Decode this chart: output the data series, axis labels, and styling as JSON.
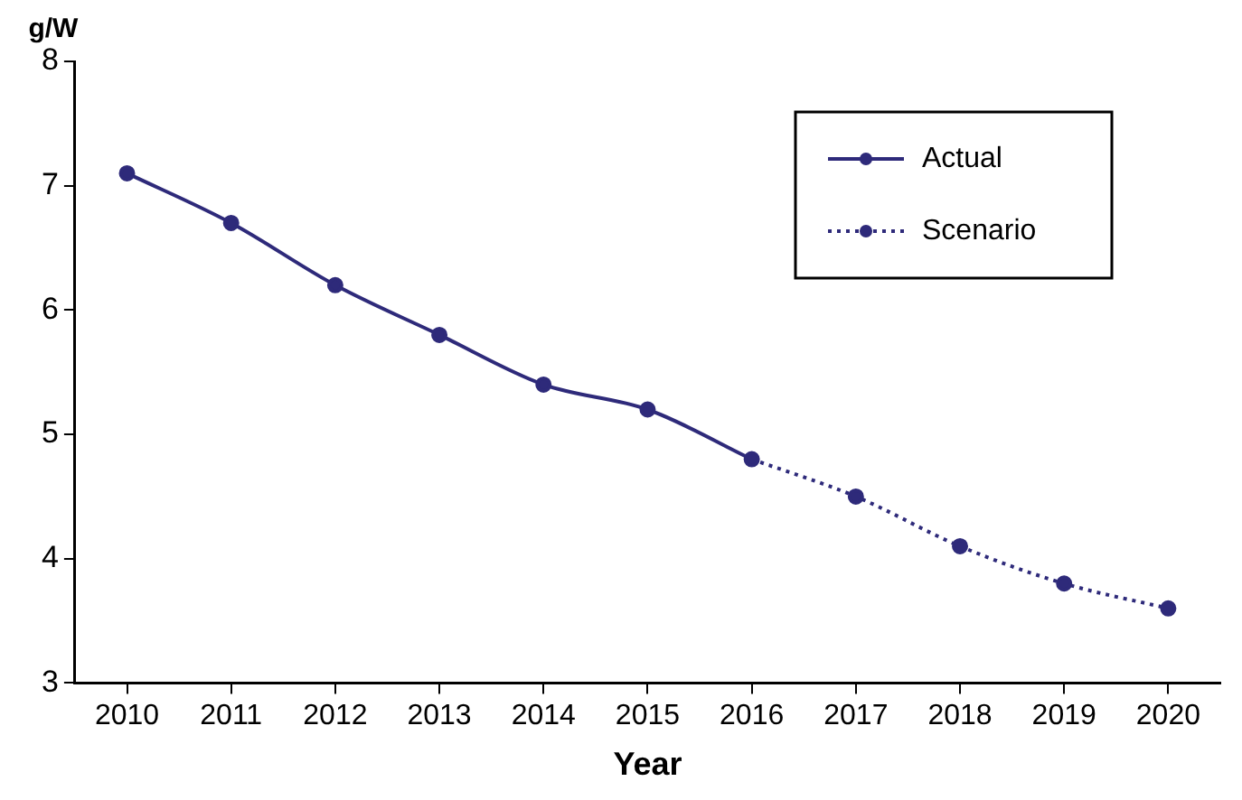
{
  "chart_data": {
    "type": "line",
    "ylabel": "g/W",
    "xlabel": "Year",
    "categories": [
      "2010",
      "2011",
      "2012",
      "2013",
      "2014",
      "2015",
      "2016",
      "2017",
      "2018",
      "2019",
      "2020"
    ],
    "series": [
      {
        "name": "Actual",
        "color": "#2e2a7a",
        "line_style": "solid",
        "values": [
          7.1,
          6.7,
          6.2,
          5.8,
          5.4,
          5.2,
          4.8,
          null,
          null,
          null,
          null
        ]
      },
      {
        "name": "Scenario",
        "color": "#2e2a7a",
        "line_style": "dotted",
        "values": [
          null,
          null,
          null,
          null,
          null,
          null,
          4.8,
          4.5,
          4.1,
          3.8,
          3.6
        ]
      }
    ],
    "ylim": [
      3,
      8
    ],
    "yticks": [
      3,
      4,
      5,
      6,
      7,
      8
    ],
    "grid": false,
    "legend": "top right",
    "marker": "circle"
  }
}
